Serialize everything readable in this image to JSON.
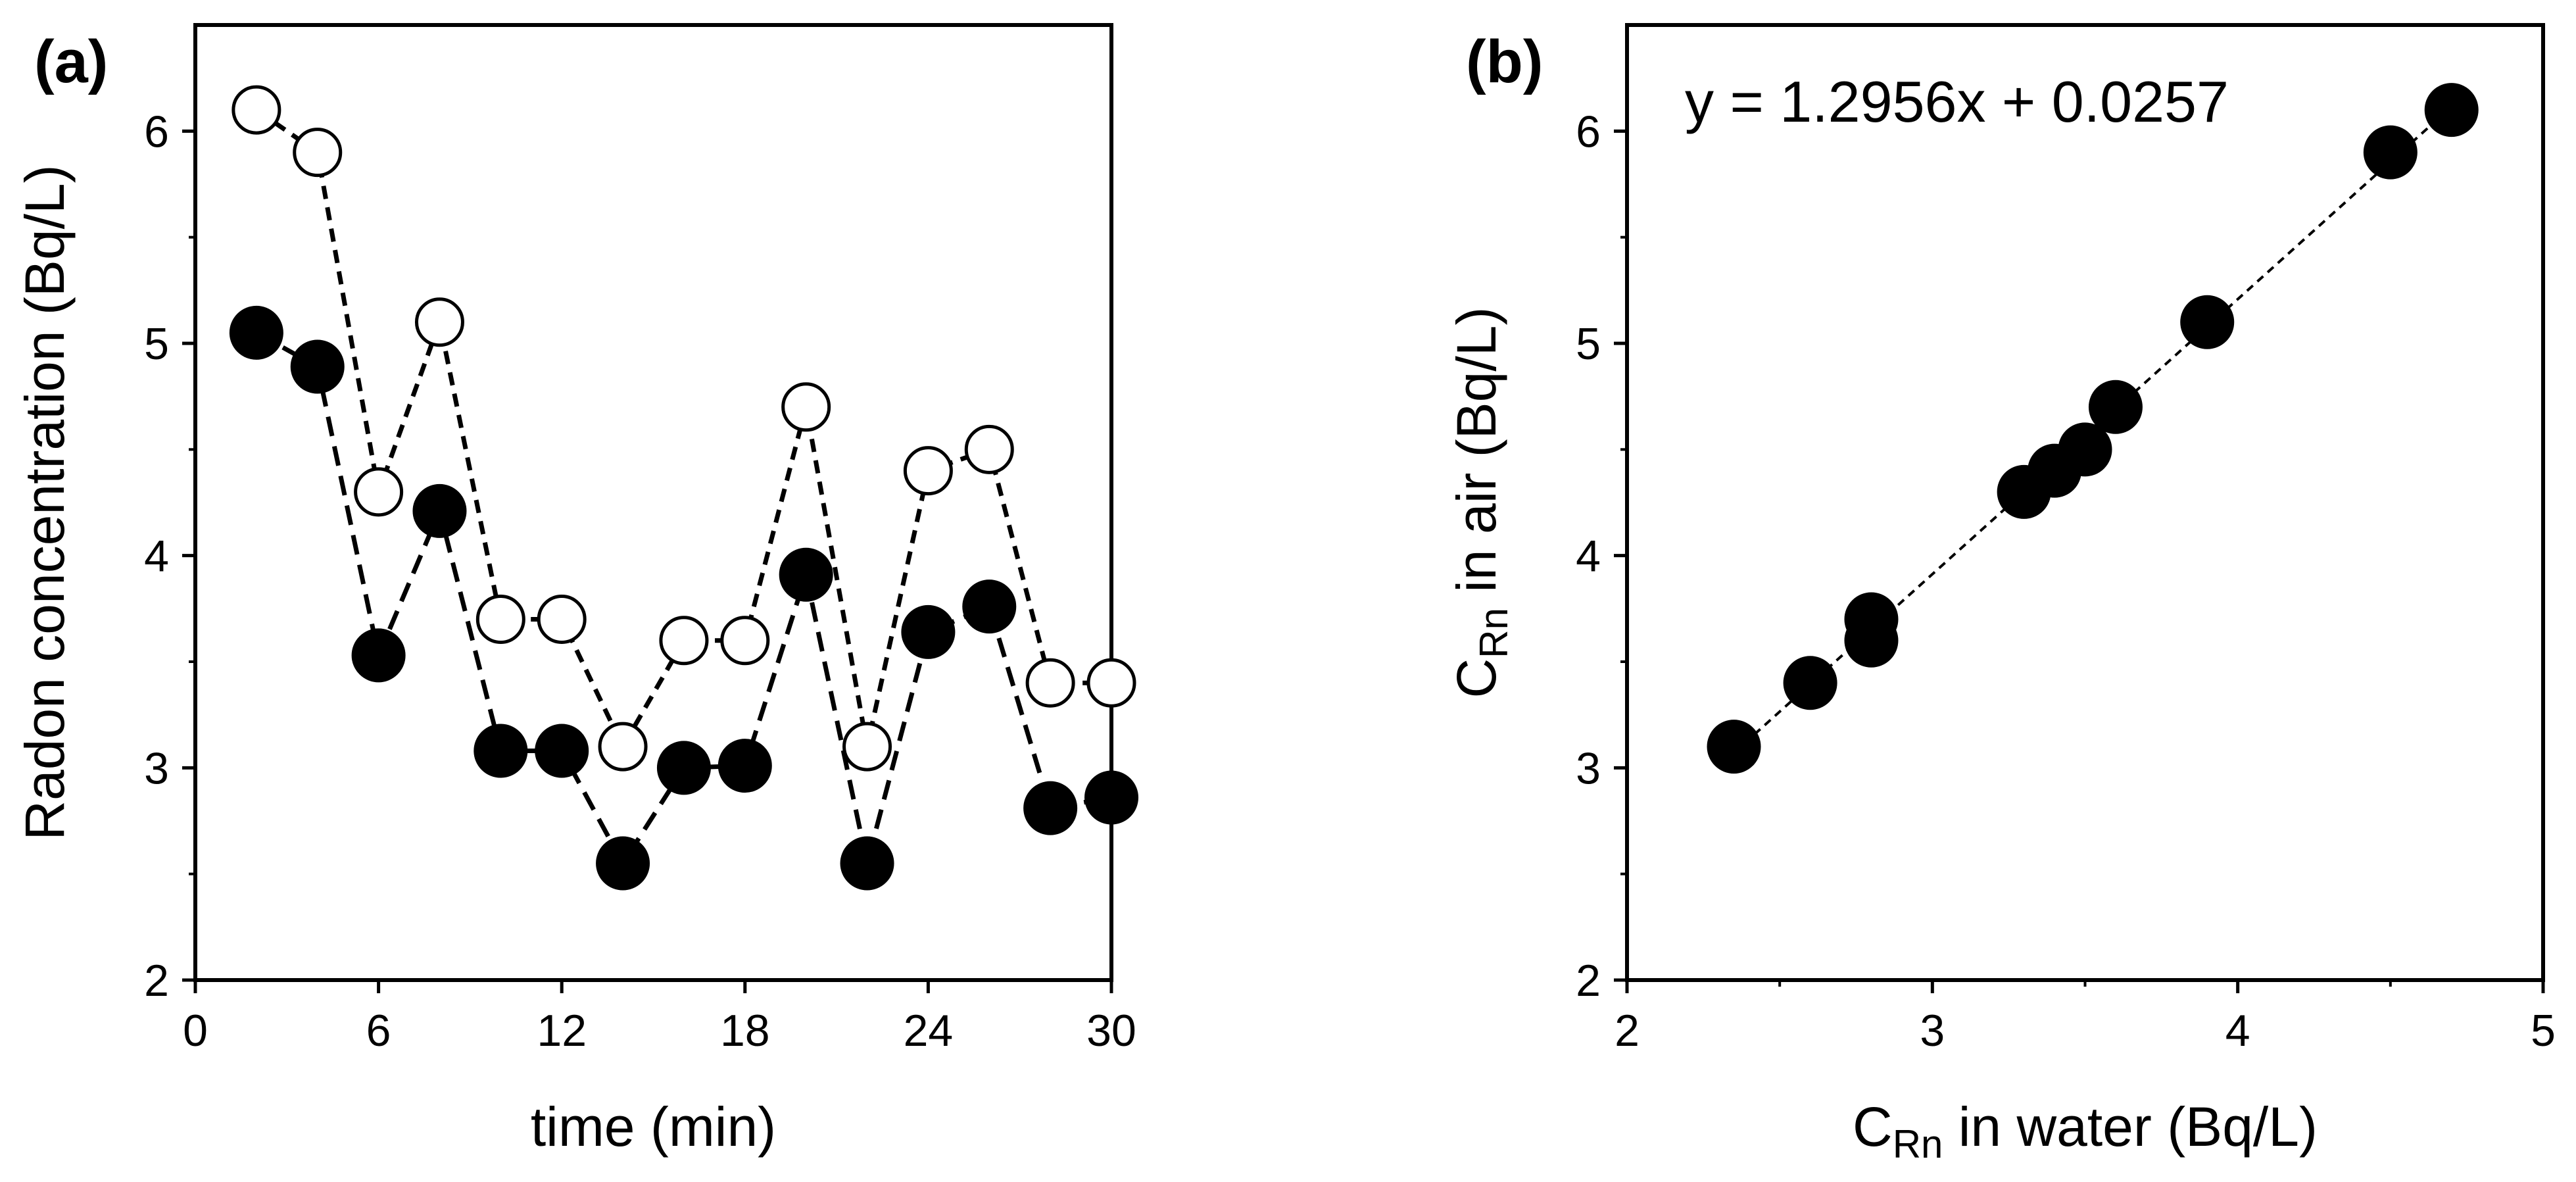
{
  "chart_data": [
    {
      "panel": "a",
      "type": "line",
      "panel_label": "(a)",
      "title": "",
      "xlabel": "time (min)",
      "ylabel": "Radon concentration (Bq/L)",
      "xlim": [
        0,
        30
      ],
      "ylim": [
        2,
        6.5
      ],
      "xticks": [
        0,
        6,
        12,
        18,
        24,
        30
      ],
      "yticks": [
        2,
        3,
        4,
        5,
        6
      ],
      "grid": false,
      "series": [
        {
          "name": "open markers",
          "marker": "open-circle",
          "line": "dashed",
          "x": [
            2,
            4,
            6,
            8,
            10,
            12,
            14,
            16,
            18,
            20,
            22,
            24,
            26,
            28,
            30
          ],
          "y": [
            6.1,
            5.9,
            4.3,
            5.1,
            3.7,
            3.7,
            3.1,
            3.6,
            3.6,
            4.7,
            3.1,
            4.4,
            4.5,
            3.4,
            3.4
          ]
        },
        {
          "name": "filled markers",
          "marker": "filled-circle",
          "line": "long-dashed",
          "x": [
            2,
            4,
            6,
            8,
            10,
            12,
            14,
            16,
            18,
            20,
            22,
            24,
            26,
            28,
            30
          ],
          "y": [
            5.05,
            4.89,
            3.53,
            4.21,
            3.08,
            3.08,
            2.55,
            3.0,
            3.01,
            3.91,
            2.55,
            3.64,
            3.76,
            2.81,
            2.86
          ]
        }
      ]
    },
    {
      "panel": "b",
      "type": "scatter",
      "panel_label": "(b)",
      "title": "",
      "xlabel": "C",
      "xlabel_sub": "Rn",
      "xlabel_rest": " in water (Bq/L)",
      "ylabel": "C",
      "ylabel_sub": "Rn",
      "ylabel_rest": " in air (Bq/L)",
      "xlim": [
        2,
        5
      ],
      "ylim": [
        2,
        6.5
      ],
      "xticks": [
        2,
        3,
        4,
        5
      ],
      "yticks": [
        2,
        3,
        4,
        5,
        6
      ],
      "grid": false,
      "equation": "y = 1.2956x + 0.0257",
      "trendline": {
        "slope": 1.2956,
        "intercept": 0.0257,
        "x_range": [
          2.35,
          4.7
        ]
      },
      "series": [
        {
          "name": "points",
          "marker": "filled-circle",
          "x": [
            2.35,
            2.6,
            2.8,
            2.8,
            3.3,
            3.4,
            3.5,
            3.6,
            3.9,
            4.5,
            4.7
          ],
          "y": [
            3.1,
            3.4,
            3.6,
            3.7,
            4.3,
            4.4,
            4.5,
            4.7,
            5.1,
            5.9,
            6.1
          ]
        }
      ]
    }
  ]
}
